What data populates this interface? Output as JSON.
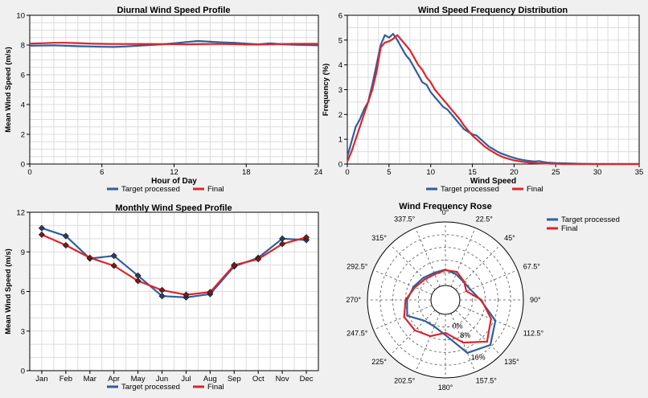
{
  "colors": {
    "target": "#2f5f9e",
    "final": "#d9262c"
  },
  "chart_data": [
    {
      "id": "diurnal",
      "type": "line",
      "title": "Diurnal Wind Speed Profile",
      "xlabel": "Hour of Day",
      "ylabel": "Mean Wind Speed (m/s)",
      "xlim": [
        0,
        24
      ],
      "ylim": [
        0,
        10
      ],
      "xticks": [
        0,
        6,
        12,
        18,
        24
      ],
      "yticks": [
        0,
        2,
        4,
        6,
        8,
        10
      ],
      "grid": true,
      "legend": [
        "Target processed",
        "Final"
      ],
      "series": [
        {
          "name": "Target processed",
          "color": "#2f5f9e",
          "x": [
            0,
            1,
            2,
            3,
            4,
            5,
            6,
            7,
            8,
            9,
            10,
            11,
            12,
            13,
            14,
            15,
            16,
            17,
            18,
            19,
            20,
            21,
            22,
            23,
            24
          ],
          "y": [
            7.95,
            7.97,
            7.98,
            7.95,
            7.92,
            7.9,
            7.88,
            7.87,
            7.9,
            7.95,
            8.0,
            8.05,
            8.12,
            8.2,
            8.27,
            8.22,
            8.18,
            8.15,
            8.1,
            8.05,
            8.12,
            8.05,
            8.02,
            8.0,
            7.98
          ]
        },
        {
          "name": "Final",
          "color": "#d9262c",
          "x": [
            0,
            1,
            2,
            3,
            4,
            5,
            6,
            7,
            8,
            9,
            10,
            11,
            12,
            13,
            14,
            15,
            16,
            17,
            18,
            19,
            20,
            21,
            22,
            23,
            24
          ],
          "y": [
            8.1,
            8.12,
            8.15,
            8.15,
            8.13,
            8.1,
            8.08,
            8.07,
            8.07,
            8.07,
            8.07,
            8.06,
            8.06,
            8.05,
            8.06,
            8.07,
            8.07,
            8.06,
            8.03,
            8.03,
            8.05,
            8.07,
            8.08,
            8.08,
            8.08
          ]
        }
      ]
    },
    {
      "id": "freq",
      "type": "line",
      "title": "Wind Speed Frequency Distribution",
      "xlabel": "Wind Speed",
      "ylabel": "Frequency (%)",
      "xlim": [
        0,
        35
      ],
      "ylim": [
        0,
        6
      ],
      "xticks": [
        0,
        5,
        10,
        15,
        20,
        25,
        30,
        35
      ],
      "yticks": [
        0,
        1,
        2,
        3,
        4,
        5,
        6
      ],
      "grid": true,
      "legend": [
        "Target processed",
        "Final"
      ],
      "series": [
        {
          "name": "Target processed",
          "color": "#2f5f9e",
          "x": [
            0,
            0.5,
            1,
            1.5,
            2,
            2.5,
            3,
            3.5,
            4,
            4.5,
            5,
            5.5,
            6,
            6.5,
            7,
            7.5,
            8,
            8.5,
            9,
            9.5,
            10,
            10.5,
            11,
            11.5,
            12,
            12.5,
            13,
            13.5,
            14,
            14.5,
            15,
            15.5,
            16,
            16.5,
            17,
            17.5,
            18,
            18.5,
            19,
            19.5,
            20,
            20.5,
            21,
            21.5,
            22,
            22.5,
            23,
            23.5,
            24,
            24.5,
            25,
            26,
            27,
            28,
            30,
            32,
            35
          ],
          "y": [
            0.3,
            0.9,
            1.5,
            1.8,
            2.2,
            2.5,
            3.2,
            4.0,
            4.8,
            5.2,
            5.1,
            5.25,
            5.0,
            4.7,
            4.4,
            4.2,
            3.9,
            3.6,
            3.3,
            3.2,
            2.9,
            2.7,
            2.5,
            2.3,
            2.2,
            2.0,
            1.8,
            1.6,
            1.4,
            1.3,
            1.2,
            1.15,
            1.0,
            0.85,
            0.7,
            0.6,
            0.5,
            0.42,
            0.36,
            0.3,
            0.25,
            0.2,
            0.17,
            0.14,
            0.12,
            0.1,
            0.12,
            0.08,
            0.06,
            0.05,
            0.04,
            0.03,
            0.02,
            0.01,
            0.0,
            0.0,
            0.0
          ]
        },
        {
          "name": "Final",
          "color": "#d9262c",
          "x": [
            0,
            0.5,
            1,
            1.5,
            2,
            2.5,
            3,
            3.5,
            4,
            4.5,
            5,
            5.5,
            6,
            6.5,
            7,
            7.5,
            8,
            8.5,
            9,
            9.5,
            10,
            10.5,
            11,
            11.5,
            12,
            12.5,
            13,
            13.5,
            14,
            14.5,
            15,
            15.5,
            16,
            16.5,
            17,
            17.5,
            18,
            18.5,
            19,
            19.5,
            20,
            20.5,
            21,
            21.5,
            22,
            22.5,
            23,
            23.5,
            24,
            24.5,
            25,
            26,
            27,
            28,
            30,
            32,
            35
          ],
          "y": [
            0.1,
            0.5,
            1.0,
            1.5,
            2.0,
            2.5,
            3.0,
            3.7,
            4.7,
            4.9,
            4.95,
            5.05,
            5.2,
            5.0,
            4.8,
            4.6,
            4.3,
            4.0,
            3.8,
            3.5,
            3.3,
            3.0,
            2.8,
            2.6,
            2.4,
            2.2,
            2.0,
            1.8,
            1.55,
            1.35,
            1.15,
            1.0,
            0.85,
            0.7,
            0.58,
            0.48,
            0.38,
            0.3,
            0.24,
            0.19,
            0.15,
            0.12,
            0.09,
            0.07,
            0.05,
            0.04,
            0.03,
            0.02,
            0.02,
            0.01,
            0.01,
            0.0,
            0.0,
            0.0,
            0.0,
            0.0,
            0.0
          ]
        }
      ]
    },
    {
      "id": "monthly",
      "type": "line",
      "title": "Monthly Wind Speed Profile",
      "ylabel": "Mean Wind Speed (m/s)",
      "categories": [
        "Jan",
        "Feb",
        "Mar",
        "Apr",
        "May",
        "Jun",
        "Jul",
        "Aug",
        "Sep",
        "Oct",
        "Nov",
        "Dec"
      ],
      "ylim": [
        0,
        12
      ],
      "yticks": [
        0,
        3,
        6,
        9,
        12
      ],
      "grid": true,
      "legend": [
        "Target processed",
        "Final"
      ],
      "series": [
        {
          "name": "Target processed",
          "color": "#2f5f9e",
          "values": [
            10.8,
            10.2,
            8.5,
            8.7,
            7.2,
            5.65,
            5.55,
            5.8,
            7.9,
            8.55,
            10.0,
            9.9
          ]
        },
        {
          "name": "Final",
          "color": "#d9262c",
          "values": [
            10.3,
            9.5,
            8.55,
            7.95,
            6.8,
            6.1,
            5.75,
            5.95,
            8.0,
            8.45,
            9.6,
            10.1
          ]
        }
      ]
    },
    {
      "id": "rose",
      "type": "radar",
      "title": "Wind Frequency Rose",
      "directions": [
        "0°",
        "22.5°",
        "45°",
        "67.5°",
        "90°",
        "112.5°",
        "135°",
        "157.5°",
        "180°",
        "202.5°",
        "225°",
        "247.5°",
        "270°",
        "292.5°",
        "315°",
        "337.5°"
      ],
      "ring_labels": [
        "0%",
        "8%",
        "16%"
      ],
      "rlim": [
        0,
        20
      ],
      "legend": [
        "Target processed",
        "Final"
      ],
      "series": [
        {
          "name": "Target processed",
          "color": "#2f5f9e",
          "values": [
            5.0,
            4.2,
            3.5,
            4.0,
            6.5,
            12.5,
            15.5,
            13.5,
            6.5,
            4.5,
            4.7,
            8.5,
            7.5,
            6.3,
            5.3,
            4.7
          ]
        },
        {
          "name": "Final",
          "color": "#d9262c",
          "values": [
            4.8,
            5.0,
            3.7,
            2.6,
            6.8,
            11.0,
            14.0,
            10.0,
            5.8,
            7.8,
            9.0,
            9.5,
            8.0,
            5.8,
            4.6,
            4.2
          ]
        }
      ]
    }
  ]
}
